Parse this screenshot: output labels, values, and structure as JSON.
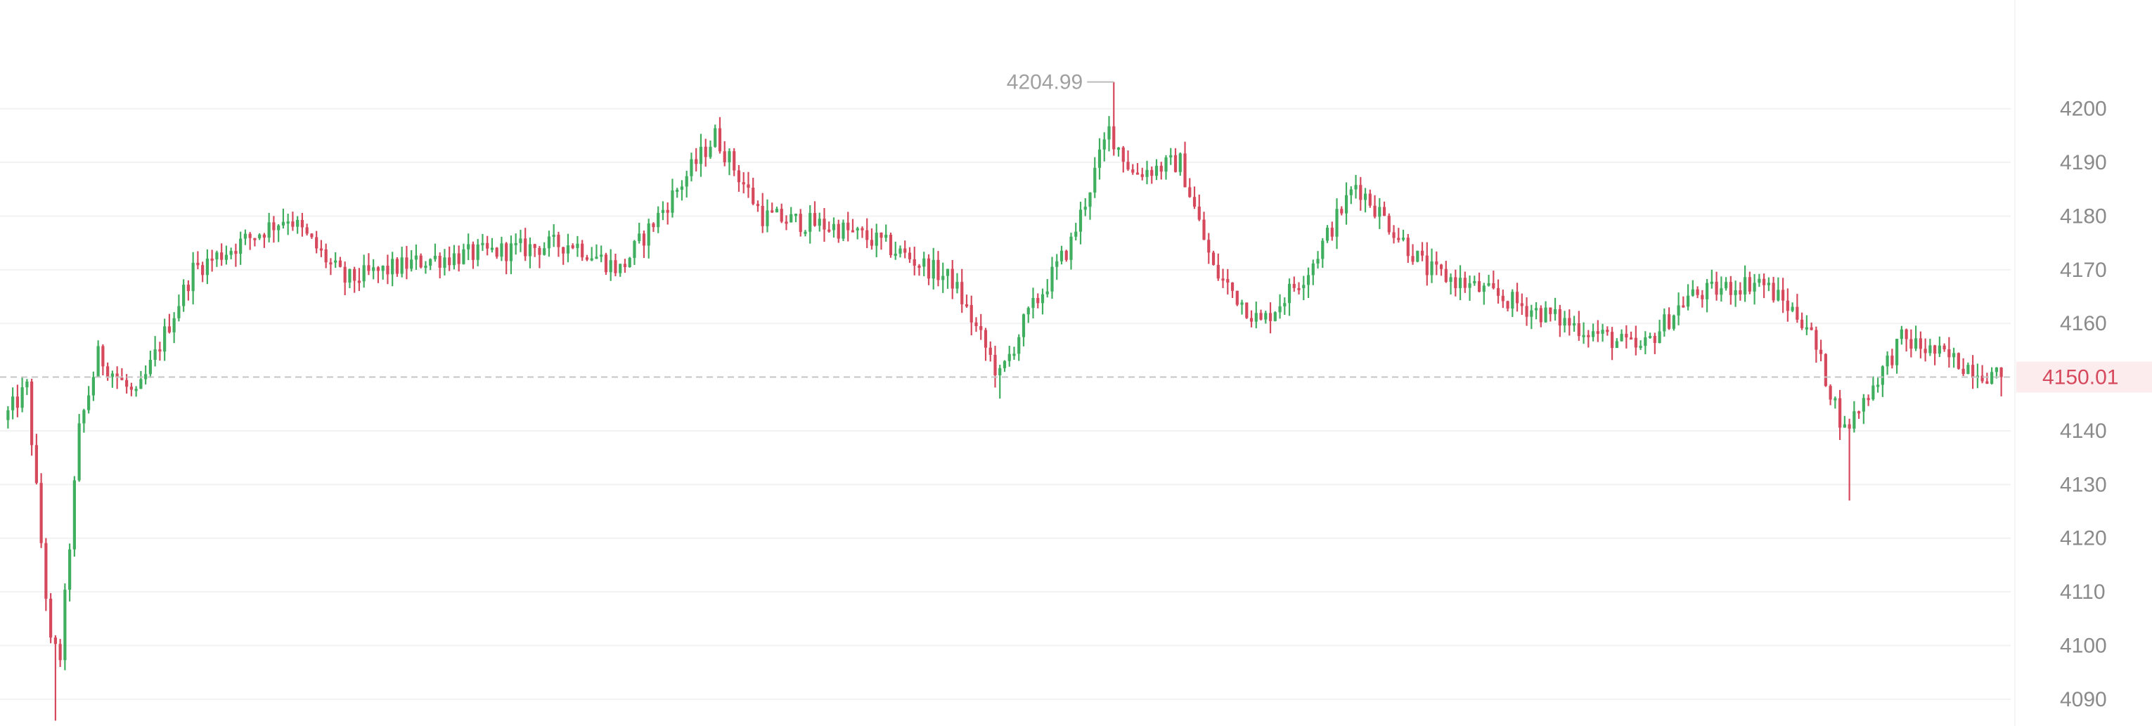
{
  "colors": {
    "up": "#3fae5f",
    "down": "#d6485b",
    "grid": "#f2f2f2",
    "axis_text": "#8a8a8a",
    "current_price_text": "#d6485b",
    "current_price_bg": "#fdecee",
    "current_line": "#c4c4c4",
    "high_label": "#a0a0a0"
  },
  "chart_data": {
    "type": "candlestick",
    "ylim": [
      4085,
      4220
    ],
    "y_ticks": [
      4090,
      4100,
      4110,
      4120,
      4130,
      4140,
      4160,
      4170,
      4180,
      4190,
      4200
    ],
    "y_tick_labels": [
      "4090",
      "4100",
      "4110",
      "4120",
      "4130",
      "4140",
      "4160",
      "4170",
      "4180",
      "4190",
      "4200"
    ],
    "grid": true,
    "axis_position": "right",
    "current_price": 4150.01,
    "current_price_label": "4150.01",
    "high": 4204.99,
    "high_label": "4204.99",
    "key_points": [
      [
        0,
        4142
      ],
      [
        5,
        4148
      ],
      [
        10,
        4100
      ],
      [
        12,
        4098
      ],
      [
        16,
        4140
      ],
      [
        20,
        4154
      ],
      [
        28,
        4146
      ],
      [
        40,
        4170
      ],
      [
        60,
        4180
      ],
      [
        72,
        4168
      ],
      [
        90,
        4172
      ],
      [
        120,
        4175
      ],
      [
        130,
        4170
      ],
      [
        150,
        4195
      ],
      [
        160,
        4180
      ],
      [
        175,
        4178
      ],
      [
        185,
        4175
      ],
      [
        200,
        4168
      ],
      [
        210,
        4150
      ],
      [
        215,
        4160
      ],
      [
        225,
        4175
      ],
      [
        233,
        4196
      ],
      [
        238,
        4188
      ],
      [
        248,
        4190
      ],
      [
        255,
        4170
      ],
      [
        265,
        4160
      ],
      [
        275,
        4170
      ],
      [
        285,
        4186
      ],
      [
        300,
        4170
      ],
      [
        315,
        4165
      ],
      [
        330,
        4160
      ],
      [
        345,
        4155
      ],
      [
        355,
        4165
      ],
      [
        370,
        4168
      ],
      [
        380,
        4160
      ],
      [
        388,
        4140
      ],
      [
        395,
        4150
      ],
      [
        400,
        4157
      ],
      [
        420,
        4150
      ]
    ]
  }
}
